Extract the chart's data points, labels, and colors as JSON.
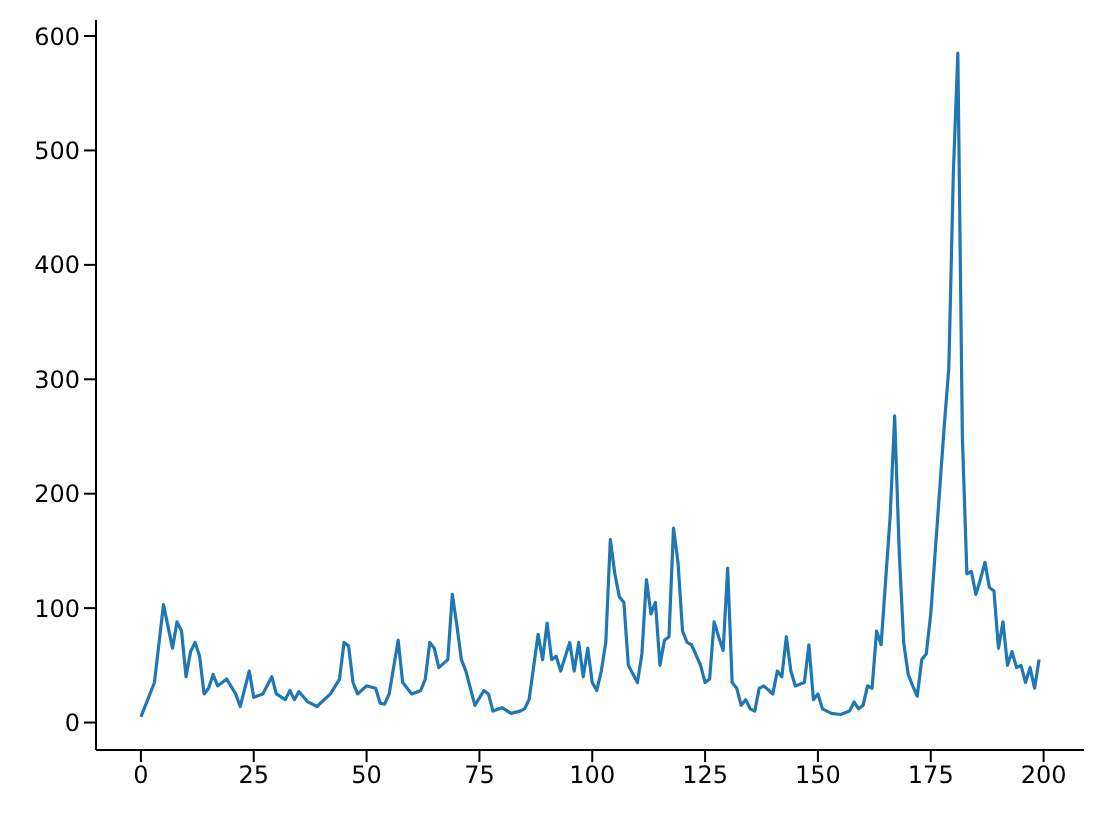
{
  "chart_data": {
    "type": "line",
    "x": [
      0,
      3,
      5,
      7,
      8,
      9,
      10,
      11,
      12,
      13,
      14,
      15,
      16,
      17,
      19,
      21,
      22,
      24,
      25,
      27,
      29,
      30,
      32,
      33,
      34,
      35,
      37,
      39,
      42,
      44,
      45,
      46,
      47,
      48,
      50,
      52,
      53,
      54,
      55,
      57,
      58,
      60,
      62,
      63,
      64,
      65,
      66,
      68,
      69,
      70,
      71,
      72,
      74,
      76,
      77,
      78,
      80,
      82,
      84,
      85,
      86,
      88,
      89,
      90,
      91,
      92,
      93,
      95,
      96,
      97,
      98,
      99,
      100,
      101,
      102,
      103,
      104,
      105,
      106,
      107,
      108,
      110,
      111,
      112,
      113,
      114,
      115,
      116,
      117,
      118,
      119,
      120,
      121,
      122,
      124,
      125,
      126,
      127,
      128,
      129,
      130,
      131,
      132,
      133,
      134,
      135,
      136,
      137,
      138,
      140,
      141,
      142,
      143,
      144,
      145,
      147,
      148,
      149,
      150,
      151,
      153,
      155,
      157,
      158,
      159,
      160,
      161,
      162,
      163,
      164,
      166,
      167,
      168,
      169,
      170,
      171,
      172,
      173,
      174,
      175,
      176,
      178,
      179,
      180,
      181,
      182,
      183,
      184,
      185,
      186,
      187,
      188,
      189,
      190,
      191,
      192,
      193,
      194,
      195,
      196,
      197,
      198,
      199
    ],
    "series": [
      {
        "color": "#1f77b4",
        "values": [
          5,
          35,
          103,
          65,
          88,
          80,
          40,
          62,
          70,
          58,
          25,
          30,
          42,
          32,
          38,
          25,
          14,
          45,
          22,
          25,
          40,
          25,
          20,
          28,
          20,
          27,
          18,
          14,
          25,
          38,
          70,
          67,
          35,
          25,
          32,
          30,
          17,
          16,
          25,
          72,
          35,
          25,
          28,
          38,
          70,
          65,
          48,
          55,
          112,
          85,
          55,
          45,
          15,
          28,
          25,
          10,
          13,
          8,
          10,
          12,
          20,
          77,
          55,
          87,
          55,
          58,
          45,
          70,
          45,
          70,
          40,
          65,
          35,
          28,
          45,
          70,
          160,
          130,
          110,
          105,
          50,
          35,
          60,
          125,
          95,
          105,
          50,
          72,
          75,
          170,
          140,
          80,
          70,
          68,
          50,
          35,
          38,
          88,
          75,
          63,
          135,
          35,
          30,
          15,
          20,
          12,
          10,
          30,
          32,
          25,
          45,
          40,
          75,
          45,
          32,
          35,
          68,
          20,
          25,
          12,
          8,
          7,
          10,
          18,
          12,
          15,
          32,
          30,
          80,
          68,
          180,
          268,
          150,
          70,
          42,
          32,
          23,
          55,
          60,
          95,
          150,
          260,
          310,
          480,
          585,
          250,
          130,
          132,
          112,
          125,
          140,
          118,
          115,
          65,
          88,
          50,
          62,
          48,
          50,
          35,
          48,
          30,
          55
        ]
      }
    ],
    "xlim": [
      -9.95,
      208.95
    ],
    "xticks": [
      0,
      25,
      50,
      75,
      100,
      125,
      150,
      175,
      200
    ],
    "ylim": [
      -24,
      614
    ],
    "yticks": [
      0,
      100,
      200,
      300,
      400,
      500,
      600
    ]
  }
}
